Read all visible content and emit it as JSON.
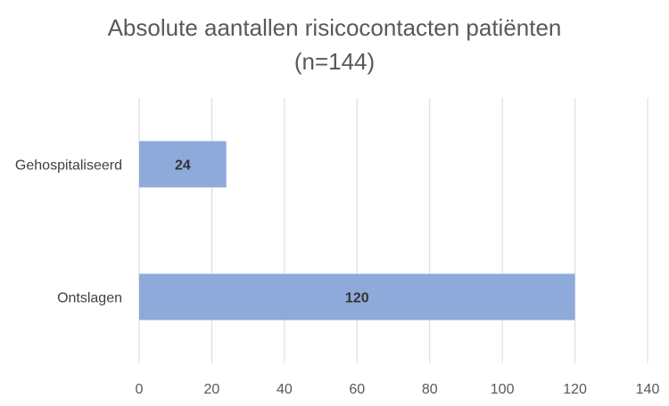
{
  "chart_data": {
    "type": "bar",
    "orientation": "horizontal",
    "title_line1": "Absolute aantallen risicocontacten patiënten",
    "title_line2": "(n=144)",
    "categories": [
      "Gehospitaliseerd",
      "Ontslagen"
    ],
    "values": [
      24,
      120
    ],
    "data_labels": [
      "24",
      "120"
    ],
    "xlim": [
      0,
      140
    ],
    "x_ticks": [
      0,
      20,
      40,
      60,
      80,
      100,
      120,
      140
    ],
    "grid": "vertical",
    "legend": "none",
    "bar_color": "#8eaadb",
    "grid_color": "#d9d9d9"
  }
}
